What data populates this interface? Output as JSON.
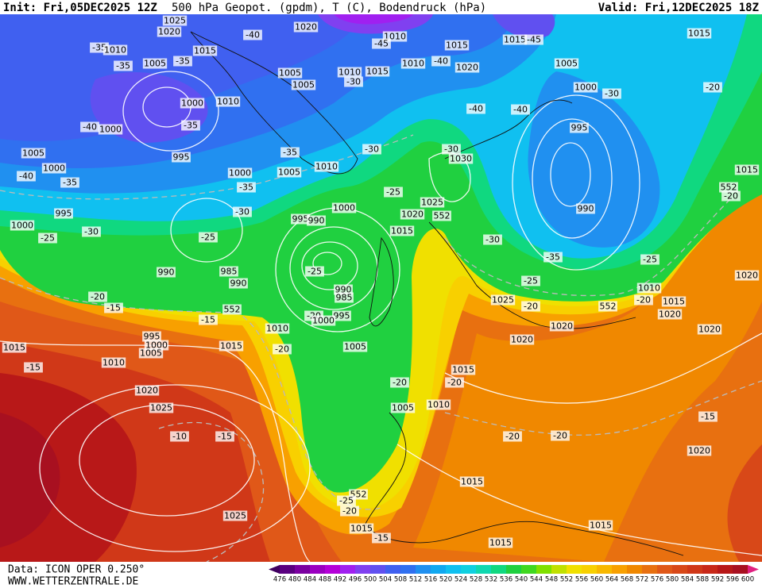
{
  "header": {
    "init": "Init: Fri,05DEC2025 12Z",
    "title": "500 hPa Geopot. (gpdm), T (C), Bodendruck (hPa)",
    "valid": "Valid: Fri,12DEC2025 18Z"
  },
  "footer": {
    "source": "Data: ICON OPER 0.250°",
    "site": "WWW.WETTERZENTRALE.DE"
  },
  "legend": {
    "ticks": [
      476,
      480,
      484,
      488,
      492,
      496,
      500,
      504,
      508,
      512,
      516,
      520,
      524,
      528,
      532,
      536,
      540,
      544,
      548,
      552,
      556,
      560,
      564,
      568,
      572,
      576,
      580,
      584,
      588,
      592,
      596,
      600
    ],
    "colors": [
      "#5a0080",
      "#7a00a0",
      "#9a00c0",
      "#b400d8",
      "#a020f0",
      "#8040f0",
      "#6050f0",
      "#4060f0",
      "#3070f0",
      "#2090f0",
      "#10a8f0",
      "#10c0f0",
      "#10d0e0",
      "#10d8b0",
      "#10d880",
      "#20d040",
      "#40d820",
      "#80e000",
      "#c0e000",
      "#f0e000",
      "#f8d000",
      "#f8b800",
      "#f8a000",
      "#f08800",
      "#e87010",
      "#e05818",
      "#d84818",
      "#d03818",
      "#c82818",
      "#b81818",
      "#a81020"
    ],
    "low_color": "#400060",
    "high_color": "#e02080"
  },
  "map": {
    "labels": [
      "1025",
      "1020",
      "-40",
      "1020",
      "1010",
      "-45",
      "1015",
      "1015",
      "-45",
      "1015",
      "-35",
      "1010",
      "-35",
      "1015",
      "1005",
      "-35",
      "1005",
      "1010",
      "-30",
      "1015",
      "1010",
      "-40",
      "1020",
      "1005",
      "1005",
      "1000",
      "-30",
      "-20",
      "1010",
      "1000",
      "-40",
      "1000",
      "-35",
      "-40",
      "-40",
      "995",
      "1005",
      "995",
      "-35",
      "-30",
      "-30",
      "1030",
      "1000",
      "-40",
      "1010",
      "1005",
      "1000",
      "-35",
      "-35",
      "-25",
      "1025",
      "1015",
      "552",
      "-20",
      "995",
      "-30",
      "1000",
      "1020",
      "552",
      "990",
      "1000",
      "995",
      "990",
      "-30",
      "1015",
      "-25",
      "-25",
      "-30",
      "-35",
      "-25",
      "-25",
      "990",
      "985",
      "990",
      "-25",
      "990",
      "985",
      "1010",
      "-20",
      "-20",
      "1015",
      "1025",
      "-20",
      "552",
      "-15",
      "552",
      "1020",
      "-20",
      "995",
      "1000",
      "-15",
      "1020",
      "1010",
      "1020",
      "1020",
      "995",
      "1020",
      "1000",
      "1015",
      "1015",
      "1005",
      "-20",
      "1005",
      "-15",
      "1010",
      "1015",
      "-20",
      "-20",
      "1020",
      "1025",
      "1005",
      "1010",
      "-15",
      "-10",
      "-15",
      "-20",
      "-20",
      "1020",
      "1015",
      "552",
      "-25",
      "-20",
      "1025",
      "1015",
      "1015",
      "-15",
      "1015"
    ]
  }
}
